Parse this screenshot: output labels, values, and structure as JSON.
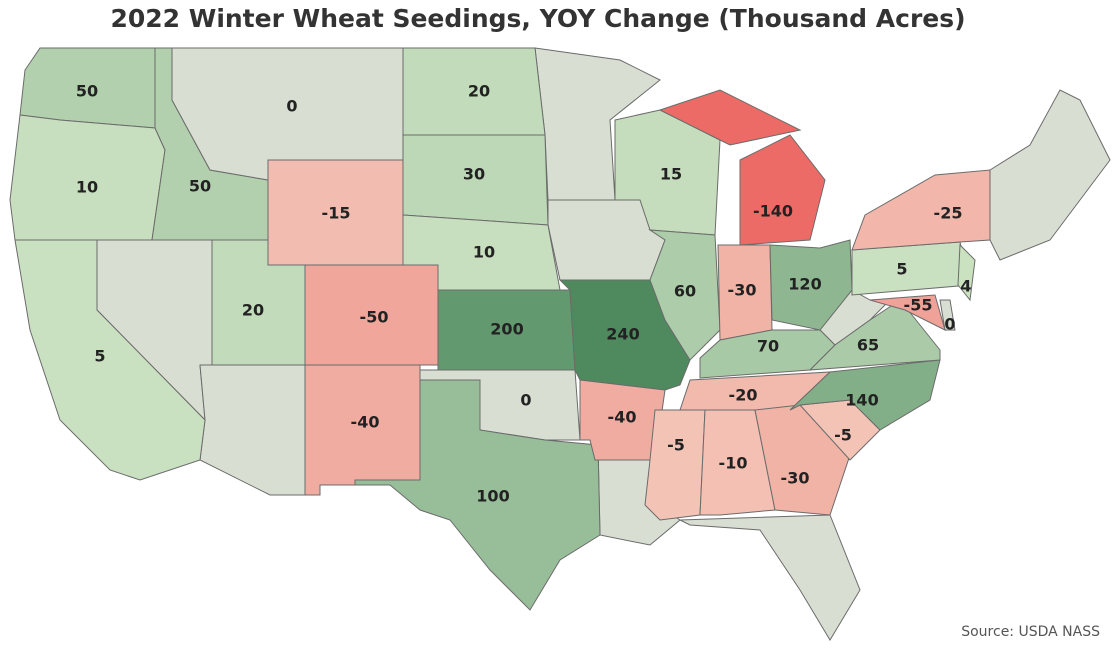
{
  "map": {
    "type": "choropleth",
    "title": "2022 Winter Wheat Seedings, YOY Change (Thousand Acres)",
    "source": "Source: USDA NASS",
    "values": [
      50,
      10,
      5,
      50,
      0,
      -15,
      20,
      -50,
      -40,
      20,
      30,
      10,
      200,
      0,
      100,
      240,
      -40,
      15,
      60,
      -140,
      -30,
      120,
      70,
      -20,
      -5,
      -10,
      -30,
      -5,
      140,
      65,
      5,
      -25,
      4,
      -55,
      0
    ],
    "colors": {
      "negative_low": "#f3c6b9",
      "negative_high": "#ec6b66",
      "zero": "#d8dfd2",
      "positive_low": "#cde3c3",
      "positive_high": "#4e8a5e"
    },
    "no_data_color": "#d8dfd2"
  }
}
